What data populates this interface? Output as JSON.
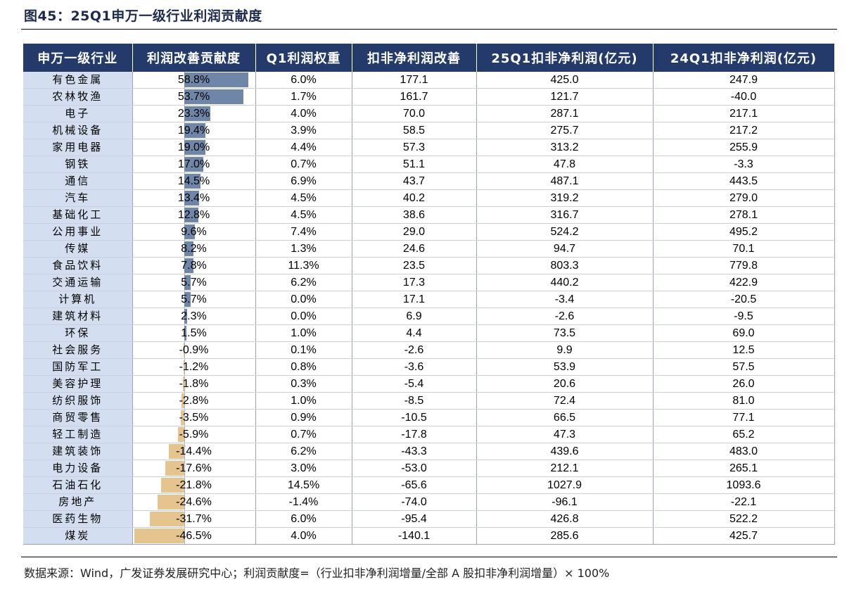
{
  "title": "图45：25Q1申万一级行业利润贡献度",
  "source": "数据来源：Wind，广发证券发展研究中心；利润贡献度=（行业扣非净利润增量/全部 A 股扣非净利润增量）× 100%",
  "colors": {
    "header_bg": "#233a6a",
    "industry_bg": "#d3def0",
    "bar_positive": "#6f86a8",
    "bar_negative": "#e6c48f"
  },
  "chart_data": {
    "type": "table",
    "title": "25Q1申万一级行业利润贡献度",
    "columns": [
      "申万一级行业",
      "利润改善贡献度",
      "Q1利润权重",
      "扣非净利润改善",
      "25Q1扣非净利润(亿元)",
      "24Q1扣非净利润(亿元)"
    ],
    "bar_column": "利润改善贡献度",
    "bar_range": [
      -46.5,
      58.8
    ],
    "rows": [
      {
        "industry": "有色金属",
        "contrib": 58.8,
        "contrib_label": "58.8%",
        "weight": "6.0%",
        "improve": "177.1",
        "q1_25": "425.0",
        "q1_24": "247.9"
      },
      {
        "industry": "农林牧渔",
        "contrib": 53.7,
        "contrib_label": "53.7%",
        "weight": "1.7%",
        "improve": "161.7",
        "q1_25": "121.7",
        "q1_24": "-40.0"
      },
      {
        "industry": "电子",
        "contrib": 23.3,
        "contrib_label": "23.3%",
        "weight": "4.0%",
        "improve": "70.0",
        "q1_25": "287.1",
        "q1_24": "217.1"
      },
      {
        "industry": "机械设备",
        "contrib": 19.4,
        "contrib_label": "19.4%",
        "weight": "3.9%",
        "improve": "58.5",
        "q1_25": "275.7",
        "q1_24": "217.2"
      },
      {
        "industry": "家用电器",
        "contrib": 19.0,
        "contrib_label": "19.0%",
        "weight": "4.4%",
        "improve": "57.3",
        "q1_25": "313.2",
        "q1_24": "255.9"
      },
      {
        "industry": "钢铁",
        "contrib": 17.0,
        "contrib_label": "17.0%",
        "weight": "0.7%",
        "improve": "51.1",
        "q1_25": "47.8",
        "q1_24": "-3.3"
      },
      {
        "industry": "通信",
        "contrib": 14.5,
        "contrib_label": "14.5%",
        "weight": "6.9%",
        "improve": "43.7",
        "q1_25": "487.1",
        "q1_24": "443.5"
      },
      {
        "industry": "汽车",
        "contrib": 13.4,
        "contrib_label": "13.4%",
        "weight": "4.5%",
        "improve": "40.2",
        "q1_25": "319.2",
        "q1_24": "279.0"
      },
      {
        "industry": "基础化工",
        "contrib": 12.8,
        "contrib_label": "12.8%",
        "weight": "4.5%",
        "improve": "38.6",
        "q1_25": "316.7",
        "q1_24": "278.1"
      },
      {
        "industry": "公用事业",
        "contrib": 9.6,
        "contrib_label": "9.6%",
        "weight": "7.4%",
        "improve": "29.0",
        "q1_25": "524.2",
        "q1_24": "495.2"
      },
      {
        "industry": "传媒",
        "contrib": 8.2,
        "contrib_label": "8.2%",
        "weight": "1.3%",
        "improve": "24.6",
        "q1_25": "94.7",
        "q1_24": "70.1"
      },
      {
        "industry": "食品饮料",
        "contrib": 7.8,
        "contrib_label": "7.8%",
        "weight": "11.3%",
        "improve": "23.5",
        "q1_25": "803.3",
        "q1_24": "779.8"
      },
      {
        "industry": "交通运输",
        "contrib": 5.7,
        "contrib_label": "5.7%",
        "weight": "6.2%",
        "improve": "17.3",
        "q1_25": "440.2",
        "q1_24": "422.9"
      },
      {
        "industry": "计算机",
        "contrib": 5.7,
        "contrib_label": "5.7%",
        "weight": "0.0%",
        "improve": "17.1",
        "q1_25": "-3.4",
        "q1_24": "-20.5"
      },
      {
        "industry": "建筑材料",
        "contrib": 2.3,
        "contrib_label": "2.3%",
        "weight": "0.0%",
        "improve": "6.9",
        "q1_25": "-2.6",
        "q1_24": "-9.5"
      },
      {
        "industry": "环保",
        "contrib": 1.5,
        "contrib_label": "1.5%",
        "weight": "1.0%",
        "improve": "4.4",
        "q1_25": "73.5",
        "q1_24": "69.0"
      },
      {
        "industry": "社会服务",
        "contrib": -0.9,
        "contrib_label": "-0.9%",
        "weight": "0.1%",
        "improve": "-2.6",
        "q1_25": "9.9",
        "q1_24": "12.5"
      },
      {
        "industry": "国防军工",
        "contrib": -1.2,
        "contrib_label": "-1.2%",
        "weight": "0.8%",
        "improve": "-3.6",
        "q1_25": "53.9",
        "q1_24": "57.5"
      },
      {
        "industry": "美容护理",
        "contrib": -1.8,
        "contrib_label": "-1.8%",
        "weight": "0.3%",
        "improve": "-5.4",
        "q1_25": "20.6",
        "q1_24": "26.0"
      },
      {
        "industry": "纺织服饰",
        "contrib": -2.8,
        "contrib_label": "-2.8%",
        "weight": "1.0%",
        "improve": "-8.5",
        "q1_25": "72.4",
        "q1_24": "81.0"
      },
      {
        "industry": "商贸零售",
        "contrib": -3.5,
        "contrib_label": "-3.5%",
        "weight": "0.9%",
        "improve": "-10.5",
        "q1_25": "66.5",
        "q1_24": "77.1"
      },
      {
        "industry": "轻工制造",
        "contrib": -5.9,
        "contrib_label": "-5.9%",
        "weight": "0.7%",
        "improve": "-17.8",
        "q1_25": "47.3",
        "q1_24": "65.2"
      },
      {
        "industry": "建筑装饰",
        "contrib": -14.4,
        "contrib_label": "-14.4%",
        "weight": "6.2%",
        "improve": "-43.3",
        "q1_25": "439.6",
        "q1_24": "483.0"
      },
      {
        "industry": "电力设备",
        "contrib": -17.6,
        "contrib_label": "-17.6%",
        "weight": "3.0%",
        "improve": "-53.0",
        "q1_25": "212.1",
        "q1_24": "265.1"
      },
      {
        "industry": "石油石化",
        "contrib": -21.8,
        "contrib_label": "-21.8%",
        "weight": "14.5%",
        "improve": "-65.6",
        "q1_25": "1027.9",
        "q1_24": "1093.6"
      },
      {
        "industry": "房地产",
        "contrib": -24.6,
        "contrib_label": "-24.6%",
        "weight": "-1.4%",
        "improve": "-74.0",
        "q1_25": "-96.1",
        "q1_24": "-22.1"
      },
      {
        "industry": "医药生物",
        "contrib": -31.7,
        "contrib_label": "-31.7%",
        "weight": "6.0%",
        "improve": "-95.4",
        "q1_25": "426.8",
        "q1_24": "522.2"
      },
      {
        "industry": "煤炭",
        "contrib": -46.5,
        "contrib_label": "-46.5%",
        "weight": "4.0%",
        "improve": "-140.1",
        "q1_25": "285.6",
        "q1_24": "425.7"
      }
    ]
  }
}
